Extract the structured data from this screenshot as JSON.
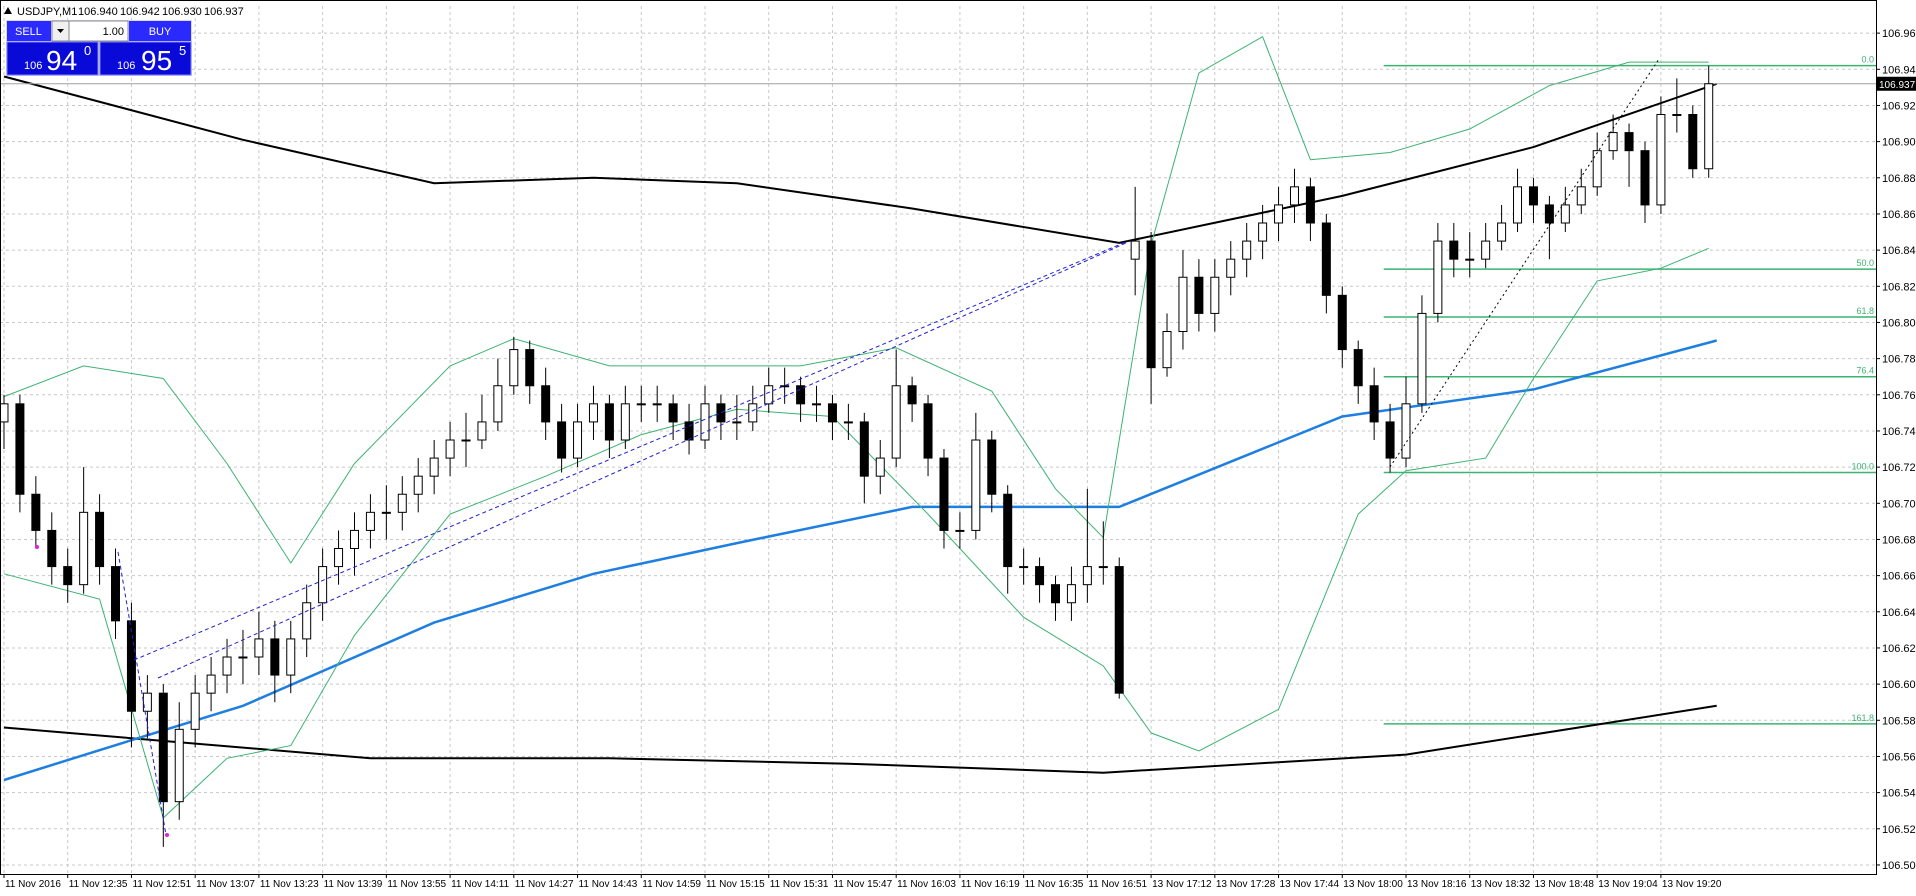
{
  "header": {
    "symbol": "USDJPY,M1",
    "quote": [
      "106.940",
      "106.942",
      "106.930",
      "106.937"
    ]
  },
  "trade_panel": {
    "sell": "SELL",
    "buy": "BUY",
    "lot": "1.00",
    "sell_price": [
      "106",
      "94",
      "0"
    ],
    "buy_price": [
      "106",
      "95",
      "5"
    ]
  },
  "chart_data": {
    "type": "candlestick",
    "xlim": [
      -0.25,
      117.5
    ],
    "ylim": [
      106.5,
      106.98
    ],
    "grid": true,
    "up_color": "#ffffff",
    "down_color": "#000000",
    "xticks": [
      {
        "value": 0,
        "label": "11 Nov 2016"
      },
      {
        "value": 4,
        "label": "11 Nov 12:35"
      },
      {
        "value": 8,
        "label": "11 Nov 12:51"
      },
      {
        "value": 12,
        "label": "11 Nov 13:07"
      },
      {
        "value": 16,
        "label": "11 Nov 13:23"
      },
      {
        "value": 20,
        "label": "11 Nov 13:39"
      },
      {
        "value": 24,
        "label": "11 Nov 13:55"
      },
      {
        "value": 28,
        "label": "11 Nov 14:11"
      },
      {
        "value": 32,
        "label": "11 Nov 14:27"
      },
      {
        "value": 36,
        "label": "11 Nov 14:43"
      },
      {
        "value": 40,
        "label": "11 Nov 14:59"
      },
      {
        "value": 44,
        "label": "11 Nov 15:15"
      },
      {
        "value": 48,
        "label": "11 Nov 15:31"
      },
      {
        "value": 52,
        "label": "11 Nov 15:47"
      },
      {
        "value": 56,
        "label": "11 Nov 16:03"
      },
      {
        "value": 60,
        "label": "11 Nov 16:19"
      },
      {
        "value": 64,
        "label": "11 Nov 16:35"
      },
      {
        "value": 68,
        "label": "11 Nov 16:51"
      },
      {
        "value": 72,
        "label": "13 Nov 17:12"
      },
      {
        "value": 76,
        "label": "13 Nov 17:28"
      },
      {
        "value": 80,
        "label": "13 Nov 17:44"
      },
      {
        "value": 84,
        "label": "13 Nov 18:00"
      },
      {
        "value": 88,
        "label": "13 Nov 18:16"
      },
      {
        "value": 92,
        "label": "13 Nov 18:32"
      },
      {
        "value": 96,
        "label": "13 Nov 18:48"
      },
      {
        "value": 100,
        "label": "13 Nov 19:04"
      },
      {
        "value": 104,
        "label": "13 Nov 19:20"
      }
    ],
    "yticks": [
      106.505,
      106.525,
      106.545,
      106.565,
      106.585,
      106.605,
      106.625,
      106.645,
      106.665,
      106.685,
      106.705,
      106.725,
      106.745,
      106.765,
      106.785,
      106.805,
      106.825,
      106.845,
      106.865,
      106.885,
      106.905,
      106.925,
      106.945,
      106.965
    ],
    "open": [
      106.75,
      106.76,
      106.71,
      106.69,
      106.67,
      106.66,
      106.7,
      106.67,
      106.64,
      106.59,
      106.6,
      106.54,
      106.58,
      106.6,
      106.61,
      106.62,
      106.62,
      106.63,
      106.61,
      106.63,
      106.65,
      106.67,
      106.68,
      106.69,
      106.7,
      106.7,
      106.71,
      106.72,
      106.73,
      106.74,
      106.74,
      106.75,
      106.77,
      106.79,
      106.77,
      106.75,
      106.73,
      106.75,
      106.76,
      106.74,
      106.76,
      106.76,
      106.76,
      106.75,
      106.74,
      106.76,
      106.75,
      106.75,
      106.76,
      106.77,
      106.77,
      106.76,
      106.76,
      106.75,
      106.75,
      106.72,
      106.73,
      106.77,
      106.76,
      106.73,
      106.69,
      106.69,
      106.74,
      106.71,
      106.67,
      106.67,
      106.66,
      106.65,
      106.66,
      106.67,
      106.67,
      106.84,
      106.85,
      106.78,
      106.8,
      106.83,
      106.81,
      106.83,
      106.84,
      106.85,
      106.86,
      106.87,
      106.88,
      106.86,
      106.82,
      106.79,
      106.77,
      106.75,
      106.73,
      106.76,
      106.81,
      106.85,
      106.84,
      106.84,
      106.85,
      106.86,
      106.88,
      106.87,
      106.86,
      106.87,
      106.88,
      106.9,
      106.91,
      106.9,
      106.87,
      106.92,
      106.92,
      106.89
    ],
    "high": [
      106.765,
      106.765,
      106.72,
      106.7,
      106.68,
      106.725,
      106.71,
      106.68,
      106.65,
      106.61,
      106.605,
      106.595,
      106.61,
      106.62,
      106.63,
      106.635,
      106.645,
      106.64,
      106.64,
      106.66,
      106.68,
      106.69,
      106.7,
      106.71,
      106.715,
      106.72,
      106.73,
      106.74,
      106.75,
      106.755,
      106.765,
      106.785,
      106.797,
      106.795,
      106.78,
      106.76,
      106.76,
      106.77,
      106.765,
      106.77,
      106.77,
      106.77,
      106.765,
      106.76,
      106.77,
      106.765,
      106.765,
      106.77,
      106.78,
      106.78,
      106.775,
      106.77,
      106.765,
      106.76,
      106.755,
      106.74,
      106.79,
      106.775,
      106.765,
      106.735,
      106.7,
      106.755,
      106.745,
      106.715,
      106.68,
      106.675,
      106.665,
      106.67,
      106.713,
      106.695,
      106.675,
      106.88,
      106.855,
      106.81,
      106.845,
      106.84,
      106.84,
      106.85,
      106.86,
      106.87,
      106.88,
      106.89,
      106.885,
      106.865,
      106.825,
      106.795,
      106.78,
      106.76,
      106.775,
      106.82,
      106.86,
      106.86,
      106.855,
      106.86,
      106.87,
      106.89,
      106.885,
      106.875,
      106.88,
      106.89,
      106.91,
      106.92,
      106.915,
      106.905,
      106.93,
      106.94,
      106.925,
      106.947
    ],
    "low": [
      106.735,
      106.7,
      106.68,
      106.66,
      106.65,
      106.655,
      106.66,
      106.63,
      106.57,
      106.575,
      106.515,
      106.53,
      106.57,
      106.59,
      106.6,
      106.605,
      106.61,
      106.595,
      106.6,
      106.62,
      106.64,
      106.66,
      106.665,
      106.68,
      106.685,
      106.69,
      106.7,
      106.71,
      106.72,
      106.725,
      106.735,
      106.745,
      106.765,
      106.76,
      106.74,
      106.722,
      106.725,
      106.74,
      106.73,
      106.735,
      106.75,
      106.75,
      106.74,
      106.732,
      106.735,
      106.74,
      106.74,
      106.745,
      106.755,
      106.76,
      106.75,
      106.75,
      106.74,
      106.74,
      106.705,
      106.71,
      106.725,
      106.75,
      106.72,
      106.68,
      106.68,
      106.685,
      106.7,
      106.655,
      106.66,
      106.65,
      106.64,
      106.64,
      106.65,
      106.66,
      106.597,
      106.82,
      106.76,
      106.775,
      106.79,
      106.8,
      106.8,
      106.82,
      106.83,
      106.84,
      106.85,
      106.86,
      106.85,
      106.81,
      106.78,
      106.76,
      106.74,
      106.722,
      106.725,
      106.755,
      106.805,
      106.83,
      106.83,
      106.835,
      106.845,
      106.855,
      106.86,
      106.84,
      106.855,
      106.865,
      106.875,
      106.895,
      106.88,
      106.86,
      106.865,
      106.91,
      106.885,
      106.885
    ],
    "close": [
      106.76,
      106.71,
      106.69,
      106.67,
      106.66,
      106.7,
      106.67,
      106.64,
      106.59,
      106.6,
      106.54,
      106.58,
      106.6,
      106.61,
      106.62,
      106.62,
      106.63,
      106.61,
      106.63,
      106.65,
      106.67,
      106.68,
      106.69,
      106.7,
      106.7,
      106.71,
      106.72,
      106.73,
      106.74,
      106.74,
      106.75,
      106.77,
      106.79,
      106.77,
      106.75,
      106.73,
      106.75,
      106.76,
      106.74,
      106.76,
      106.76,
      106.76,
      106.75,
      106.74,
      106.76,
      106.75,
      106.75,
      106.76,
      106.77,
      106.77,
      106.76,
      106.76,
      106.75,
      106.75,
      106.72,
      106.73,
      106.77,
      106.76,
      106.73,
      106.69,
      106.69,
      106.74,
      106.71,
      106.67,
      106.67,
      106.66,
      106.65,
      106.66,
      106.67,
      106.67,
      106.6,
      106.85,
      106.78,
      106.8,
      106.83,
      106.81,
      106.83,
      106.84,
      106.85,
      106.86,
      106.87,
      106.88,
      106.86,
      106.82,
      106.79,
      106.77,
      106.75,
      106.73,
      106.76,
      106.81,
      106.85,
      106.84,
      106.84,
      106.85,
      106.86,
      106.88,
      106.87,
      106.86,
      106.87,
      106.88,
      106.9,
      106.91,
      106.9,
      106.87,
      106.92,
      106.92,
      106.89,
      106.937
    ],
    "lines": [
      {
        "color": "#000000",
        "width": 2,
        "x": [
          0,
          15,
          27,
          37,
          46,
          57,
          70,
          84,
          96,
          107.5
        ],
        "values": [
          106.941,
          106.906,
          106.882,
          106.885,
          106.882,
          106.868,
          106.849,
          106.875,
          106.902,
          106.937
        ]
      },
      {
        "color": "#000000",
        "width": 2,
        "x": [
          0,
          23,
          38,
          53,
          69,
          88,
          107.5
        ],
        "values": [
          106.581,
          106.564,
          106.564,
          106.561,
          106.556,
          106.566,
          106.593
        ]
      },
      {
        "color": "#1e7fe0",
        "width": 2.5,
        "x": [
          0,
          8,
          15,
          27,
          37,
          46,
          57,
          70,
          84,
          96,
          107.5
        ],
        "values": [
          106.552,
          106.574,
          106.593,
          106.639,
          106.666,
          106.683,
          106.703,
          106.703,
          106.753,
          106.768,
          106.795
        ]
      },
      {
        "color": "#3cb371",
        "width": 1,
        "x": [
          0,
          5,
          10,
          14,
          18,
          22,
          28,
          32,
          38,
          44,
          50,
          56,
          62,
          66,
          69,
          72,
          75,
          79,
          82,
          87,
          92,
          97,
          102,
          107
        ],
        "values": [
          106.764,
          106.781,
          106.774,
          106.727,
          106.672,
          106.727,
          106.781,
          106.796,
          106.781,
          106.781,
          106.781,
          106.791,
          106.767,
          106.713,
          106.686,
          106.848,
          106.943,
          106.963,
          106.895,
          106.899,
          106.912,
          106.936,
          106.949,
          106.949
        ]
      },
      {
        "color": "#3cb371",
        "width": 1,
        "x": [
          0,
          6,
          10,
          14,
          18,
          22,
          28,
          34,
          40,
          46,
          52,
          58,
          64,
          69,
          72,
          75,
          80,
          85,
          88,
          93,
          96,
          100,
          104,
          107
        ],
        "values": [
          106.666,
          106.652,
          106.531,
          106.564,
          106.571,
          106.632,
          106.699,
          106.72,
          106.743,
          106.757,
          106.753,
          106.699,
          106.642,
          106.615,
          106.578,
          106.568,
          106.591,
          106.699,
          106.723,
          106.73,
          106.774,
          106.828,
          106.835,
          106.846
        ]
      }
    ],
    "fibonacci": {
      "color": "#3cb371",
      "levels": [
        {
          "label": "0.0",
          "value": 106.947
        },
        {
          "label": "50.0",
          "value": 106.8345
        },
        {
          "label": "61.8",
          "value": 106.808
        },
        {
          "label": "76.4",
          "value": 106.775
        },
        {
          "label": "100.0",
          "value": 106.722
        },
        {
          "label": "161.8",
          "value": 106.583
        }
      ]
    },
    "current_price": 106.937
  }
}
